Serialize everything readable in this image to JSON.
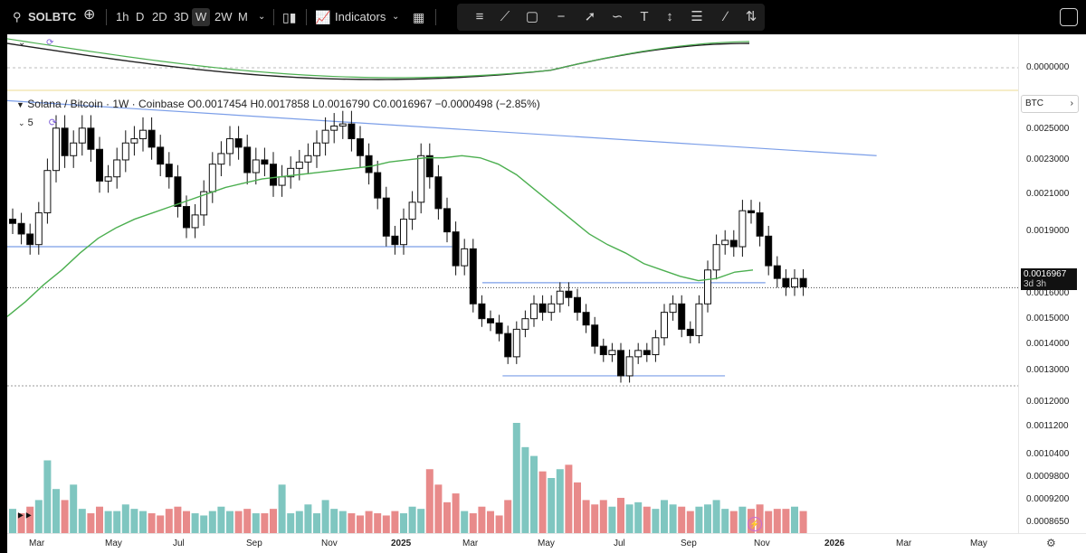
{
  "toolbar": {
    "symbol": "SOLBTC",
    "intervals": [
      "1h",
      "D",
      "2D",
      "3D",
      "W",
      "2W",
      "M"
    ],
    "active_interval": "W",
    "indicators_label": "Indicators",
    "icons": [
      "search-icon",
      "add-symbol-icon",
      "candle-style-icon",
      "indicators-icon",
      "layout-icon",
      "chevron-down-icon"
    ],
    "draw_tools": [
      "line-tool-icon",
      "trend-line-icon",
      "rectangle-icon",
      "horizontal-line-icon",
      "ray-icon",
      "path-icon",
      "text-icon",
      "price-range-icon",
      "fib-icon",
      "brush-icon",
      "long-position-icon"
    ]
  },
  "legend": {
    "title": "Solana / Bitcoin · 1W · Coinbase",
    "open": "O0.0017454",
    "high": "H0.0017858",
    "low": "L0.0016790",
    "close": "C0.0016967",
    "change": "−0.0000498 (−2.85%)",
    "indicator_value": "5"
  },
  "axis": {
    "currency": "BTC",
    "oscillator_label": "0.0000000",
    "current_price": "0.0016967",
    "countdown": "3d 3h",
    "price_labels": [
      "0.0025000",
      "0.0023000",
      "0.0021000",
      "0.0019000",
      "0.0016000",
      "0.0015000",
      "0.0014000",
      "0.0013000",
      "0.0012000",
      "0.0011200",
      "0.0010400",
      "0.0009800",
      "0.0009200",
      "0.0008650"
    ]
  },
  "colors": {
    "up_candle": "#ffffff",
    "down_candle": "#000000",
    "ma_line": "#4caf50",
    "trend_line": "#7b9ee8",
    "vol_up": "#7fc6c0",
    "vol_down": "#e88a8a",
    "osc_line_1": "#222222",
    "osc_line_2": "#4caf50"
  },
  "chart_data": {
    "type": "candlestick",
    "series_name": "Solana / Bitcoin · 1W · Coinbase",
    "x_tick_labels": [
      "Mar",
      "May",
      "Jul",
      "Sep",
      "Nov",
      "2025",
      "Mar",
      "May",
      "Jul",
      "Sep",
      "Nov",
      "2026",
      "Mar",
      "May"
    ],
    "ylim": [
      0.00081,
      0.0027
    ],
    "current_price": 0.0016967,
    "candles_close": [
      0.002,
      0.00195,
      0.0019,
      0.00205,
      0.00225,
      0.00245,
      0.00232,
      0.00238,
      0.00245,
      0.00235,
      0.0022,
      0.00222,
      0.0023,
      0.00238,
      0.0024,
      0.00244,
      0.00236,
      0.00228,
      0.00222,
      0.00208,
      0.00198,
      0.00204,
      0.00215,
      0.00228,
      0.00233,
      0.0024,
      0.00236,
      0.00224,
      0.0023,
      0.00228,
      0.00218,
      0.00222,
      0.00226,
      0.00229,
      0.00232,
      0.00238,
      0.00244,
      0.00246,
      0.00247,
      0.0024,
      0.00232,
      0.00224,
      0.00212,
      0.00194,
      0.0019,
      0.00202,
      0.0021,
      0.00232,
      0.00222,
      0.00207,
      0.00196,
      0.0018,
      0.00188,
      0.00162,
      0.00155,
      0.00153,
      0.00148,
      0.00137,
      0.0015,
      0.00155,
      0.00162,
      0.00158,
      0.00162,
      0.00168,
      0.00165,
      0.00158,
      0.00152,
      0.00142,
      0.00138,
      0.0014,
      0.00128,
      0.00137,
      0.0014,
      0.00138,
      0.00146,
      0.00158,
      0.00162,
      0.0015,
      0.00147,
      0.00162,
      0.00178,
      0.0019,
      0.00192,
      0.00189,
      0.00206,
      0.00205,
      0.00194,
      0.0018,
      0.00174,
      0.0017,
      0.00174,
      0.0017
    ],
    "ma_values": [
      0.00156,
      0.00163,
      0.00171,
      0.00178,
      0.00186,
      0.00193,
      0.00198,
      0.00202,
      0.00205,
      0.00208,
      0.00211,
      0.00214,
      0.00217,
      0.00219,
      0.00221,
      0.00222,
      0.00223,
      0.00224,
      0.00225,
      0.00226,
      0.00227,
      0.00229,
      0.0023,
      0.00231,
      0.00231,
      0.00232,
      0.00231,
      0.00228,
      0.00223,
      0.00216,
      0.00209,
      0.00202,
      0.00195,
      0.0019,
      0.00186,
      0.00181,
      0.00178,
      0.00175,
      0.00173,
      0.00174,
      0.00177,
      0.00178
    ],
    "trend_lines": [
      {
        "name": "descending-resistance",
        "from": [
          0.0,
          0.00258
        ],
        "to": [
          0.86,
          0.00232
        ]
      },
      {
        "name": "support-high",
        "from": [
          0.0,
          0.00189
        ],
        "to": [
          0.44,
          0.00189
        ]
      },
      {
        "name": "support-mid",
        "from": [
          0.47,
          0.00172
        ],
        "to": [
          0.75,
          0.00172
        ]
      },
      {
        "name": "support-low",
        "from": [
          0.49,
          0.00128
        ],
        "to": [
          0.71,
          0.00128
        ]
      }
    ],
    "volume": [
      0.22,
      0.18,
      0.24,
      0.3,
      0.66,
      0.4,
      0.3,
      0.44,
      0.22,
      0.18,
      0.24,
      0.2,
      0.2,
      0.26,
      0.22,
      0.2,
      0.18,
      0.16,
      0.22,
      0.24,
      0.2,
      0.18,
      0.16,
      0.2,
      0.24,
      0.2,
      0.2,
      0.22,
      0.18,
      0.18,
      0.22,
      0.44,
      0.18,
      0.2,
      0.26,
      0.18,
      0.3,
      0.22,
      0.2,
      0.18,
      0.16,
      0.2,
      0.18,
      0.16,
      0.2,
      0.18,
      0.24,
      0.22,
      0.58,
      0.44,
      0.28,
      0.36,
      0.2,
      0.18,
      0.24,
      0.2,
      0.16,
      0.3,
      1.0,
      0.78,
      0.7,
      0.56,
      0.5,
      0.58,
      0.62,
      0.46,
      0.3,
      0.26,
      0.3,
      0.24,
      0.32,
      0.26,
      0.28,
      0.24,
      0.22,
      0.3,
      0.26,
      0.24,
      0.2,
      0.24,
      0.26,
      0.3,
      0.22,
      0.2,
      0.24,
      0.22,
      0.26,
      0.2,
      0.22,
      0.22,
      0.24,
      0.2
    ]
  }
}
